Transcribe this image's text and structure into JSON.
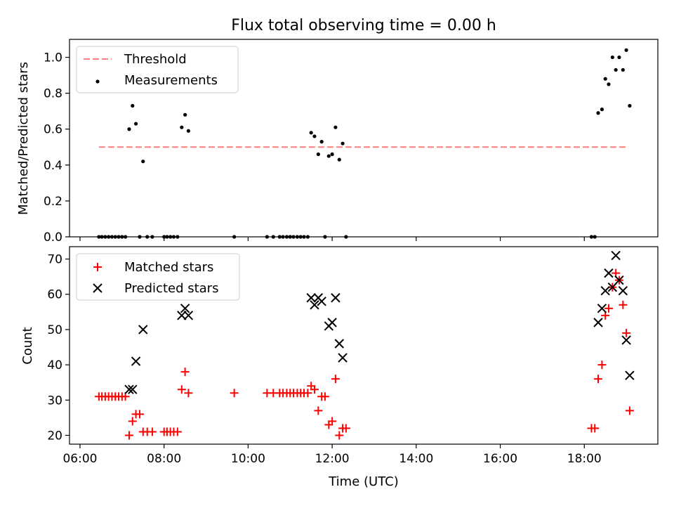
{
  "chart_data": [
    {
      "type": "scatter",
      "title": "Flux total observing time = 0.00 h",
      "xlabel": "",
      "ylabel": "Matched/Predicted stars",
      "x_unit": "hours UTC",
      "xlim": [
        5.75,
        19.75
      ],
      "ylim": [
        0,
        1.1
      ],
      "yticks": [
        0.0,
        0.2,
        0.4,
        0.6,
        0.8,
        1.0
      ],
      "ytick_labels": [
        "0.0",
        "0.2",
        "0.4",
        "0.6",
        "0.8",
        "1.0"
      ],
      "legend_position": "upper-left",
      "threshold": {
        "name": "Threshold",
        "y": 0.5,
        "x_range": [
          6.45,
          19.05
        ],
        "color": "#ff7f7f"
      },
      "series": [
        {
          "name": "Measurements",
          "color": "#000000",
          "points": [
            [
              6.45,
              0
            ],
            [
              6.52,
              0
            ],
            [
              6.6,
              0
            ],
            [
              6.68,
              0
            ],
            [
              6.76,
              0
            ],
            [
              6.84,
              0
            ],
            [
              6.92,
              0
            ],
            [
              7.0,
              0
            ],
            [
              7.08,
              0
            ],
            [
              7.17,
              0.6
            ],
            [
              7.25,
              0.73
            ],
            [
              7.33,
              0.63
            ],
            [
              7.42,
              0
            ],
            [
              7.5,
              0.42
            ],
            [
              7.6,
              0
            ],
            [
              7.72,
              0
            ],
            [
              8.0,
              0
            ],
            [
              8.07,
              0
            ],
            [
              8.15,
              0
            ],
            [
              8.23,
              0
            ],
            [
              8.32,
              0
            ],
            [
              8.42,
              0.61
            ],
            [
              8.5,
              0.68
            ],
            [
              8.58,
              0.59
            ],
            [
              9.67,
              0
            ],
            [
              10.45,
              0
            ],
            [
              10.6,
              0
            ],
            [
              10.75,
              0
            ],
            [
              10.83,
              0
            ],
            [
              10.92,
              0
            ],
            [
              11.0,
              0
            ],
            [
              11.08,
              0
            ],
            [
              11.17,
              0
            ],
            [
              11.25,
              0
            ],
            [
              11.33,
              0
            ],
            [
              11.42,
              0
            ],
            [
              11.5,
              0.58
            ],
            [
              11.58,
              0.56
            ],
            [
              11.67,
              0.46
            ],
            [
              11.75,
              0.53
            ],
            [
              11.83,
              0
            ],
            [
              11.92,
              0.45
            ],
            [
              12.0,
              0.46
            ],
            [
              12.08,
              0.61
            ],
            [
              12.17,
              0.43
            ],
            [
              12.25,
              0.52
            ],
            [
              12.33,
              0
            ],
            [
              18.17,
              0
            ],
            [
              18.25,
              0
            ],
            [
              18.33,
              0.69
            ],
            [
              18.42,
              0.71
            ],
            [
              18.5,
              0.88
            ],
            [
              18.58,
              0.85
            ],
            [
              18.67,
              1.0
            ],
            [
              18.75,
              0.93
            ],
            [
              18.83,
              1.0
            ],
            [
              18.92,
              0.93
            ],
            [
              19.0,
              1.04
            ],
            [
              19.08,
              0.73
            ]
          ]
        }
      ]
    },
    {
      "type": "scatter",
      "title": "",
      "xlabel": "Time (UTC)",
      "ylabel": "Count",
      "x_unit": "hours UTC",
      "xlim": [
        5.75,
        19.75
      ],
      "ylim": [
        17.5,
        73.5
      ],
      "yticks": [
        20,
        30,
        40,
        50,
        60,
        70
      ],
      "ytick_labels": [
        "20",
        "30",
        "40",
        "50",
        "60",
        "70"
      ],
      "xticks": [
        6,
        8,
        10,
        12,
        14,
        16,
        18
      ],
      "xtick_labels": [
        "06:00",
        "08:00",
        "10:00",
        "12:00",
        "14:00",
        "16:00",
        "18:00"
      ],
      "legend_position": "upper-left",
      "series": [
        {
          "name": "Matched stars",
          "marker": "plus",
          "color": "#ff0000",
          "points": [
            [
              6.45,
              31
            ],
            [
              6.52,
              31
            ],
            [
              6.6,
              31
            ],
            [
              6.68,
              31
            ],
            [
              6.76,
              31
            ],
            [
              6.84,
              31
            ],
            [
              6.92,
              31
            ],
            [
              7.0,
              31
            ],
            [
              7.08,
              31
            ],
            [
              7.17,
              20
            ],
            [
              7.25,
              24
            ],
            [
              7.33,
              26
            ],
            [
              7.42,
              26
            ],
            [
              7.5,
              21
            ],
            [
              7.6,
              21
            ],
            [
              7.72,
              21
            ],
            [
              8.0,
              21
            ],
            [
              8.07,
              21
            ],
            [
              8.15,
              21
            ],
            [
              8.23,
              21
            ],
            [
              8.32,
              21
            ],
            [
              8.42,
              33
            ],
            [
              8.5,
              38
            ],
            [
              8.58,
              32
            ],
            [
              9.67,
              32
            ],
            [
              10.45,
              32
            ],
            [
              10.6,
              32
            ],
            [
              10.75,
              32
            ],
            [
              10.83,
              32
            ],
            [
              10.92,
              32
            ],
            [
              11.0,
              32
            ],
            [
              11.08,
              32
            ],
            [
              11.17,
              32
            ],
            [
              11.25,
              32
            ],
            [
              11.33,
              32
            ],
            [
              11.42,
              32
            ],
            [
              11.5,
              34
            ],
            [
              11.58,
              33
            ],
            [
              11.67,
              27
            ],
            [
              11.75,
              31
            ],
            [
              11.83,
              31
            ],
            [
              11.92,
              23
            ],
            [
              12.0,
              24
            ],
            [
              12.08,
              36
            ],
            [
              12.17,
              20
            ],
            [
              12.25,
              22
            ],
            [
              12.33,
              22
            ],
            [
              18.17,
              22
            ],
            [
              18.25,
              22
            ],
            [
              18.33,
              36
            ],
            [
              18.42,
              40
            ],
            [
              18.5,
              54
            ],
            [
              18.58,
              56
            ],
            [
              18.67,
              62
            ],
            [
              18.75,
              66
            ],
            [
              18.83,
              64
            ],
            [
              18.92,
              57
            ],
            [
              19.0,
              49
            ],
            [
              19.08,
              27
            ]
          ]
        },
        {
          "name": "Predicted stars",
          "marker": "x",
          "color": "#000000",
          "points": [
            [
              7.17,
              33
            ],
            [
              7.25,
              33
            ],
            [
              7.33,
              41
            ],
            [
              7.5,
              50
            ],
            [
              8.42,
              54
            ],
            [
              8.5,
              56
            ],
            [
              8.58,
              54
            ],
            [
              11.5,
              59
            ],
            [
              11.58,
              57
            ],
            [
              11.67,
              59
            ],
            [
              11.75,
              58
            ],
            [
              11.92,
              51
            ],
            [
              12.0,
              52
            ],
            [
              12.08,
              59
            ],
            [
              12.17,
              46
            ],
            [
              12.25,
              42
            ],
            [
              18.33,
              52
            ],
            [
              18.42,
              56
            ],
            [
              18.5,
              61
            ],
            [
              18.58,
              66
            ],
            [
              18.67,
              62
            ],
            [
              18.75,
              71
            ],
            [
              18.83,
              64
            ],
            [
              18.92,
              61
            ],
            [
              19.0,
              47
            ],
            [
              19.08,
              37
            ]
          ]
        }
      ]
    }
  ]
}
